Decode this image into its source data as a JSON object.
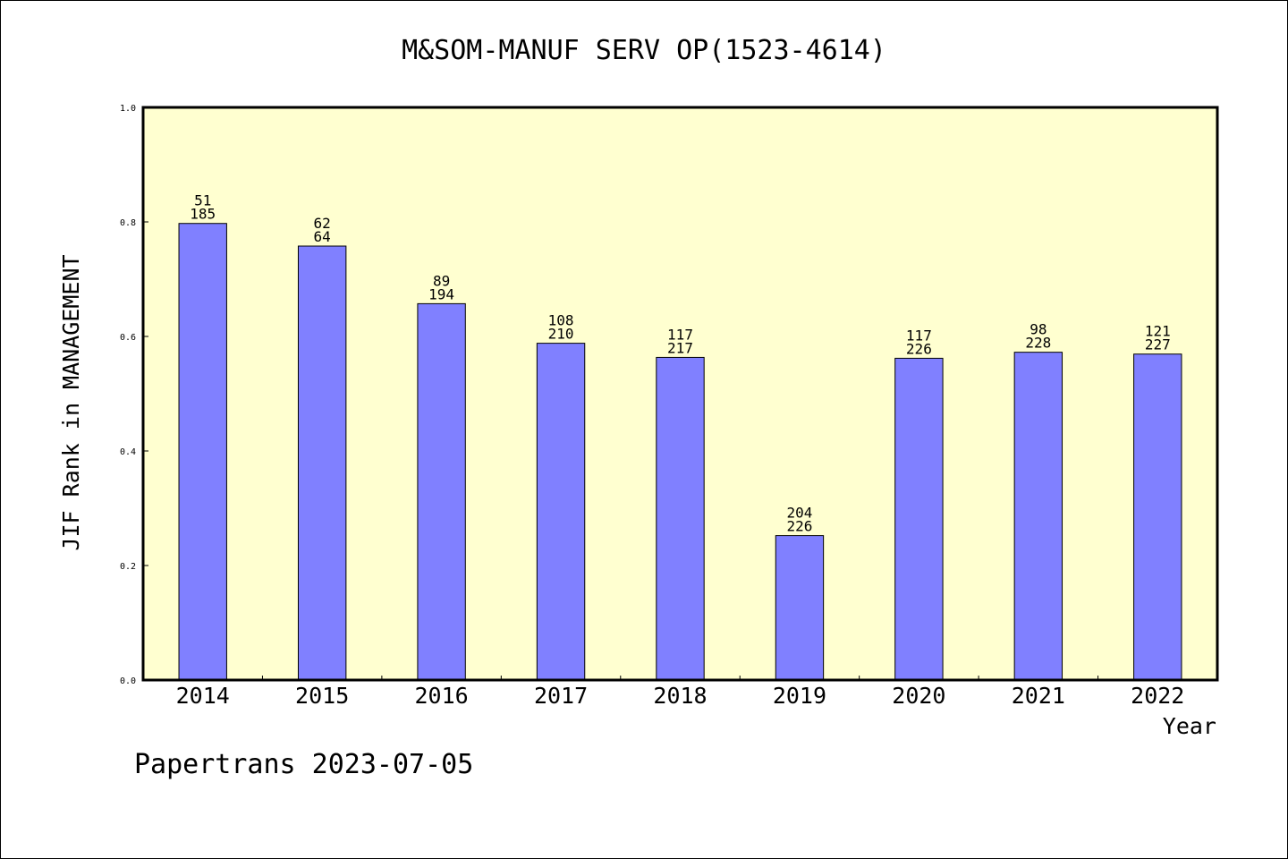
{
  "chart_data": {
    "type": "bar",
    "title": "M&SOM-MANUF SERV OP(1523-4614)",
    "xlabel": "Year",
    "ylabel": "JIF Rank in MANAGEMENT",
    "ylim": [
      0,
      1.0
    ],
    "yticks": [
      "0.0",
      "0.2",
      "0.4",
      "0.6",
      "0.8",
      "1.0"
    ],
    "categories": [
      "2014",
      "2015",
      "2016",
      "2017",
      "2018",
      "2019",
      "2020",
      "2021",
      "2022"
    ],
    "values": [
      0.7973,
      0.7578,
      0.6572,
      0.5881,
      0.5634,
      0.2522,
      0.5619,
      0.5724,
      0.5692
    ],
    "labels": [
      {
        "rank": "51",
        "total": "185"
      },
      {
        "rank": "62",
        "total": "64"
      },
      {
        "rank": "89",
        "total": "194"
      },
      {
        "rank": "108",
        "total": "210"
      },
      {
        "rank": "117",
        "total": "217"
      },
      {
        "rank": "204",
        "total": "226"
      },
      {
        "rank": "117",
        "total": "226"
      },
      {
        "rank": "98",
        "total": "228"
      },
      {
        "rank": "121",
        "total": "227"
      }
    ],
    "grid": false,
    "colors": {
      "bar": "#8080ff",
      "plot_background": "#ffffd0",
      "axis": "#000000"
    }
  },
  "credit": "Papertrans 2023-07-05"
}
